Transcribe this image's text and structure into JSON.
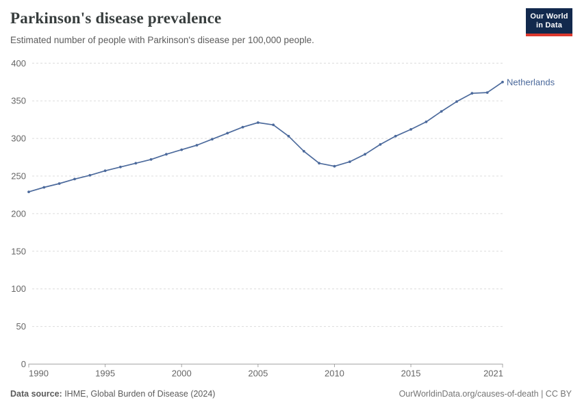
{
  "header": {
    "title": "Parkinson's disease prevalence",
    "subtitle": "Estimated number of people with Parkinson's disease per 100,000 people."
  },
  "logo": {
    "line1": "Our World",
    "line2": "in Data",
    "bg_color": "#12294d",
    "bar_color": "#dc382d"
  },
  "chart_data": {
    "type": "line",
    "title": "Parkinson's disease prevalence",
    "subtitle": "Estimated number of people with Parkinson's disease per 100,000 people.",
    "x": [
      1990,
      1991,
      1992,
      1993,
      1994,
      1995,
      1996,
      1997,
      1998,
      1999,
      2000,
      2001,
      2002,
      2003,
      2004,
      2005,
      2006,
      2007,
      2008,
      2009,
      2010,
      2011,
      2012,
      2013,
      2014,
      2015,
      2016,
      2017,
      2018,
      2019,
      2020,
      2021
    ],
    "series": [
      {
        "name": "Netherlands",
        "color": "#4c6a9c",
        "values": [
          229,
          235,
          240,
          246,
          251,
          257,
          262,
          267,
          272,
          279,
          285,
          291,
          299,
          307,
          315,
          321,
          318,
          303,
          283,
          267,
          263,
          269,
          279,
          292,
          303,
          312,
          322,
          336,
          349,
          360,
          361,
          375
        ]
      }
    ],
    "xlabel": "",
    "ylabel": "",
    "ylim": [
      0,
      400
    ],
    "xlim": [
      1990,
      2021
    ],
    "yticks": [
      0,
      50,
      100,
      150,
      200,
      250,
      300,
      350,
      400
    ],
    "xticks": [
      1990,
      1995,
      2000,
      2005,
      2010,
      2015,
      2021
    ],
    "grid": "horizontal-dashed",
    "legend_position": "end-of-line-label",
    "colors": {
      "line": "#4c6a9c",
      "gridline": "#dcdcdc",
      "axis": "#a5a5a5",
      "tick_label": "#666666"
    }
  },
  "footer": {
    "source_label": "Data source:",
    "source_text": " IHME, Global Burden of Disease (2024)",
    "credit": "OurWorldinData.org/causes-of-death | CC BY"
  }
}
